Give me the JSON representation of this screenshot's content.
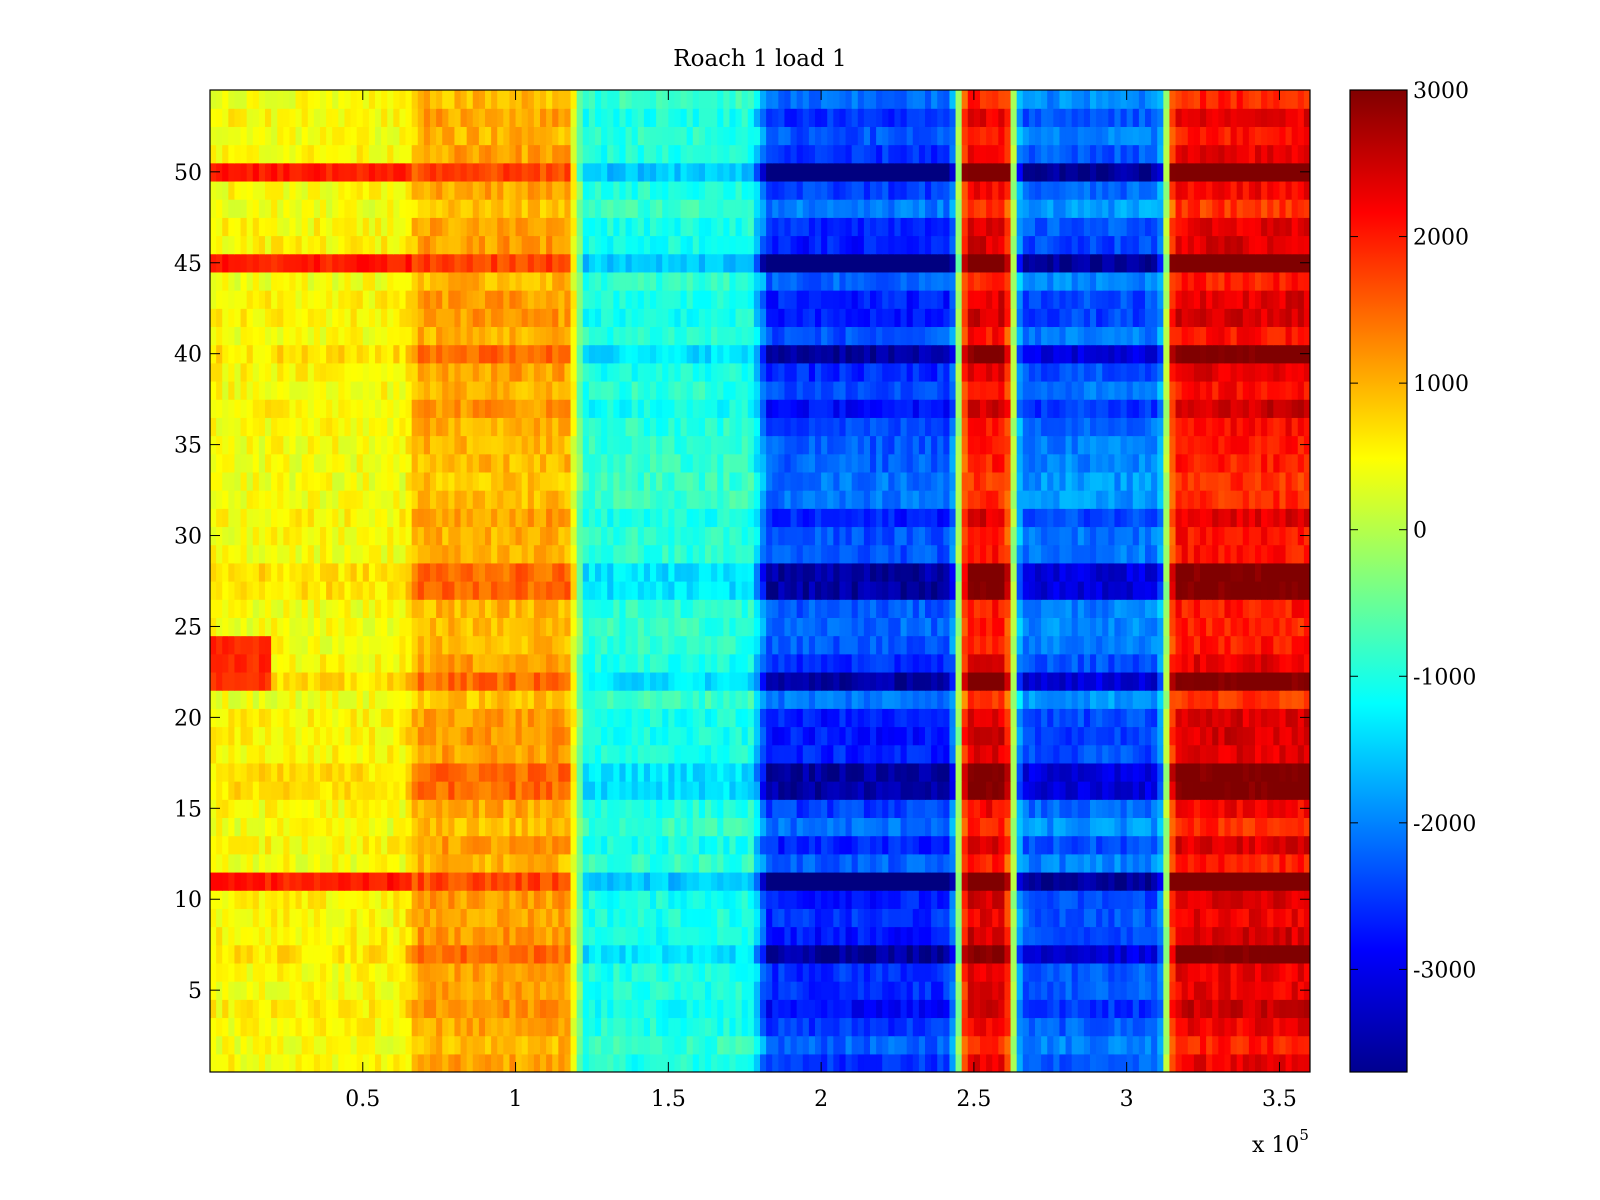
{
  "chart_data": {
    "type": "heatmap",
    "title": "Roach 1 load 1",
    "xlabel": "",
    "ylabel": "",
    "x_multiplier_label": {
      "base": "x 10",
      "exponent": "5"
    },
    "xlim": [
      0,
      3.6
    ],
    "ylim": [
      0.5,
      54.5
    ],
    "x_ticks": [
      0.5,
      1,
      1.5,
      2,
      2.5,
      3,
      3.5
    ],
    "x_tick_labels": [
      "0.5",
      "1",
      "1.5",
      "2",
      "2.5",
      "3",
      "3.5"
    ],
    "y_ticks": [
      5,
      10,
      15,
      20,
      25,
      30,
      35,
      40,
      45,
      50
    ],
    "y_tick_labels": [
      "5",
      "10",
      "15",
      "20",
      "25",
      "30",
      "35",
      "40",
      "45",
      "50"
    ],
    "rows": 54,
    "colormap": "jet",
    "clim": [
      -3700,
      3000
    ],
    "colorbar_ticks": [
      3000,
      2000,
      1000,
      0,
      -1000,
      -2000,
      -3000
    ],
    "colorbar_tick_labels": [
      "3000",
      "2000",
      "1000",
      "0",
      "-1000",
      "-2000",
      "-3000"
    ],
    "column_profile": [
      {
        "x": [
          0.0,
          0.66
        ],
        "value": 500
      },
      {
        "x": [
          0.66,
          1.2
        ],
        "value": 1100
      },
      {
        "x": [
          1.2,
          1.8
        ],
        "value": -1100
      },
      {
        "x": [
          1.8,
          2.45
        ],
        "value": -2800
      },
      {
        "x": [
          2.45,
          2.63
        ],
        "value": 2300
      },
      {
        "x": [
          2.63,
          3.13
        ],
        "value": -2500
      },
      {
        "x": [
          3.13,
          3.6
        ],
        "value": 2300
      }
    ],
    "highlight_rows": [
      50,
      45,
      40,
      28,
      27,
      22,
      17,
      16,
      11,
      7
    ],
    "strong_rows": [
      50,
      45,
      11
    ]
  }
}
